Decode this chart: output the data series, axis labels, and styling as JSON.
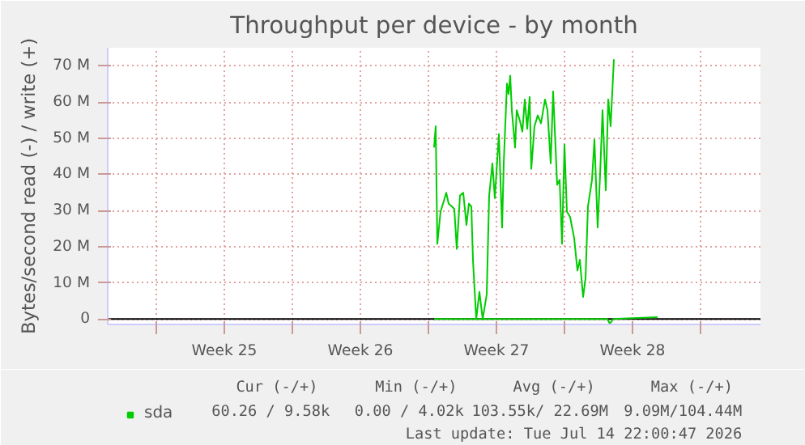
{
  "chart_data": {
    "type": "line",
    "title": "Throughput per device - by month",
    "ylabel": "Bytes/second read (-) / write (+)",
    "xlim": [
      "2026-06-12T12:00",
      "2026-07-16T02:00"
    ],
    "xticks": [
      {
        "value": "2026-06-15T00:00",
        "label": null
      },
      {
        "value": "2026-06-18T12:00",
        "label": "Week 25"
      },
      {
        "value": "2026-06-22T00:00",
        "label": null
      },
      {
        "value": "2026-06-25T12:00",
        "label": "Week 26"
      },
      {
        "value": "2026-06-29T00:00",
        "label": null
      },
      {
        "value": "2026-07-02T12:00",
        "label": "Week 27"
      },
      {
        "value": "2026-07-06T00:00",
        "label": null
      },
      {
        "value": "2026-07-09T12:00",
        "label": "Week 28"
      },
      {
        "value": "2026-07-13T00:00",
        "label": null
      }
    ],
    "ylim": [
      -1.5,
      75
    ],
    "yticks": [
      {
        "value": 0,
        "label": "0"
      },
      {
        "value": 10,
        "label": "10 M"
      },
      {
        "value": 20,
        "label": "20 M"
      },
      {
        "value": 30,
        "label": "30 M"
      },
      {
        "value": 40,
        "label": "40 M"
      },
      {
        "value": 50,
        "label": "50 M"
      },
      {
        "value": 60,
        "label": "60 M"
      },
      {
        "value": 70,
        "label": "70 M"
      }
    ],
    "grid": true,
    "legend": "bottom left",
    "marker": "none",
    "line_style": "solid",
    "ref_lines": [
      {
        "axis": "y",
        "value": 0,
        "label": null,
        "color": "#000000"
      }
    ],
    "series": [
      {
        "name": "sda",
        "color": "#00cc00",
        "x": [
          "2026-06-29T07:00",
          "2026-06-29T09:00",
          "2026-06-29T11:00",
          "2026-06-29T15:00",
          "2026-06-29T19:00",
          "2026-06-29T22:00",
          "2026-06-30T01:00",
          "2026-06-30T05:00",
          "2026-06-30T08:00",
          "2026-06-30T11:00",
          "2026-06-30T15:00",
          "2026-06-30T19:00",
          "2026-06-30T23:00",
          "2026-07-01T02:00",
          "2026-07-01T05:00",
          "2026-07-01T07:00",
          "2026-07-01T11:00",
          "2026-07-01T15:00",
          "2026-07-01T19:00",
          "2026-07-02T00:00",
          "2026-07-02T03:00",
          "2026-07-02T07:00",
          "2026-07-02T10:00",
          "2026-07-02T15:00",
          "2026-07-02T19:00",
          "2026-07-02T21:00",
          "2026-07-03T01:00",
          "2026-07-03T03:00",
          "2026-07-03T05:00",
          "2026-07-03T07:00",
          "2026-07-03T11:00",
          "2026-07-03T13:00",
          "2026-07-03T17:00",
          "2026-07-03T20:00",
          "2026-07-03T23:00",
          "2026-07-04T02:00",
          "2026-07-04T05:00",
          "2026-07-04T07:00",
          "2026-07-04T11:00",
          "2026-07-04T15:00",
          "2026-07-04T19:00",
          "2026-07-05T00:00",
          "2026-07-05T03:00",
          "2026-07-05T07:00",
          "2026-07-05T10:00",
          "2026-07-05T15:00",
          "2026-07-05T18:00",
          "2026-07-05T21:00",
          "2026-07-06T00:00",
          "2026-07-06T03:00",
          "2026-07-06T07:00",
          "2026-07-06T12:00",
          "2026-07-06T16:00",
          "2026-07-06T19:00",
          "2026-07-06T23:00",
          "2026-07-07T02:00",
          "2026-07-07T05:00",
          "2026-07-07T10:00",
          "2026-07-07T13:00",
          "2026-07-07T17:00",
          "2026-07-07T20:00",
          "2026-07-07T23:00",
          "2026-07-08T03:00",
          "2026-07-08T06:00",
          "2026-07-08T09:00",
          "2026-07-08T13:00"
        ],
        "values": [
          47.4,
          53.3,
          20.8,
          29.7,
          32.6,
          34.9,
          31.9,
          31.1,
          30.4,
          19.4,
          34.1,
          34.9,
          26,
          31.9,
          31.1,
          16.4,
          0,
          7.5,
          0,
          6.8,
          34.1,
          43,
          33.4,
          51.1,
          25.3,
          43,
          65.1,
          62.2,
          67.3,
          57.7,
          47.4,
          57.7,
          54.8,
          51.8,
          60.7,
          52.6,
          61.4,
          41.5,
          53.3,
          56.3,
          54.1,
          60.7,
          57.7,
          43,
          62.9,
          37.1,
          38.5,
          20.8,
          48.2,
          29.7,
          28.2,
          22.3,
          13.4,
          16.4,
          6.1,
          11.2,
          31.1,
          38.5,
          49.6,
          25.3,
          40,
          57.7,
          35.6,
          60.7,
          53.3,
          71.8
        ]
      },
      {
        "color": "#00cc00",
        "x": [
          "2026-06-29T07:00",
          "2026-07-02T12:00",
          "2026-07-08T05:00",
          "2026-07-08T08:00",
          "2026-07-08T12:00",
          "2026-07-10T19:00"
        ],
        "values": [
          0,
          0,
          0,
          -1.3,
          0,
          0.5
        ]
      }
    ],
    "annotations": [
      "Cur (-/+)",
      "Min (-/+)",
      "Avg (-/+)",
      "Max (-/+)",
      "60.26 /  9.58k",
      "0.00 /  4.02k",
      "103.55k/ 22.69M",
      "9.09M/104.44M",
      "Last update: Tue Jul 14 22:00:47 2026"
    ]
  }
}
